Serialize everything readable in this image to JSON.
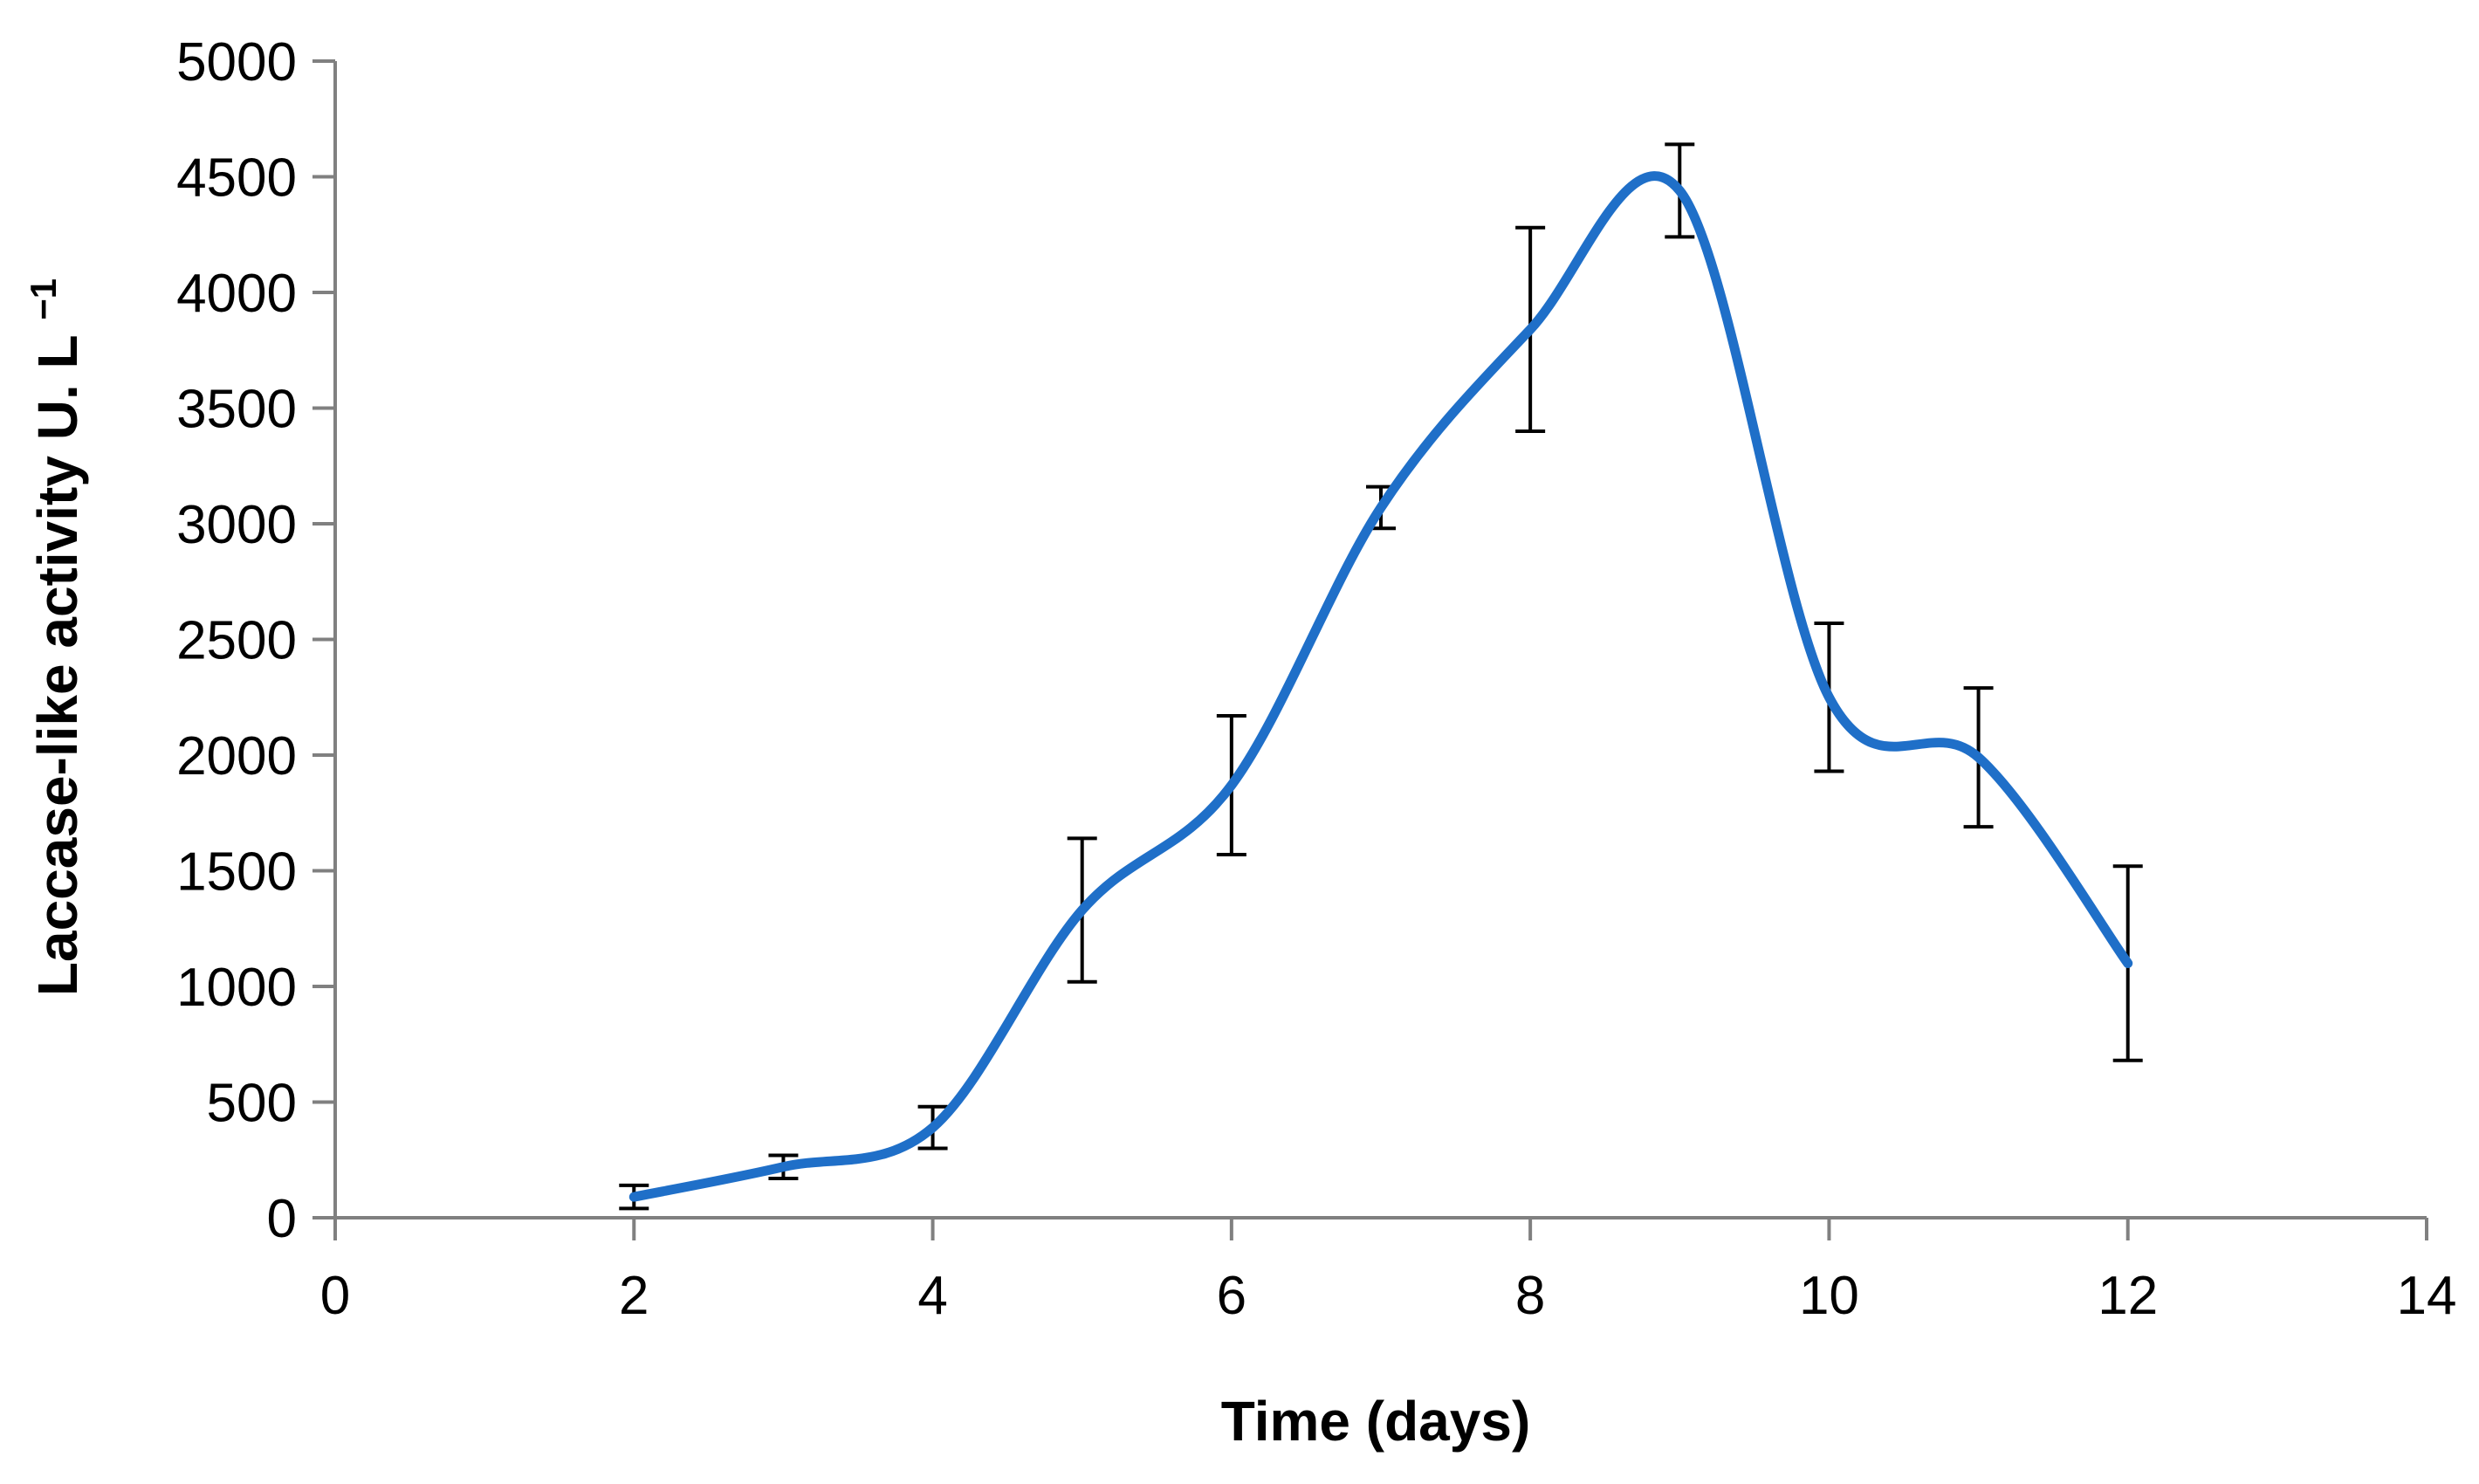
{
  "chart_data": {
    "type": "line",
    "title": "",
    "xlabel": "Time (days)",
    "ylabel": "Laccase-like activity U. L",
    "ylabel_superscript": "−1",
    "xlim": [
      0,
      14
    ],
    "ylim": [
      0,
      5000
    ],
    "x_ticks": [
      0,
      2,
      4,
      6,
      8,
      10,
      12,
      14
    ],
    "y_ticks": [
      0,
      500,
      1000,
      1500,
      2000,
      2500,
      3000,
      3500,
      4000,
      4500,
      5000
    ],
    "x_tick_labels": [
      "0",
      "2",
      "4",
      "6",
      "8",
      "10",
      "12",
      "14"
    ],
    "y_tick_labels": [
      "0",
      "500",
      "1000",
      "1500",
      "2000",
      "2500",
      "3000",
      "3500",
      "4000",
      "4500",
      "5000"
    ],
    "grid": false,
    "legend": "none",
    "smooth": true,
    "series": [
      {
        "color": "#1f6fc8",
        "x": [
          2,
          3,
          4,
          5,
          6,
          7,
          8,
          9,
          10,
          11,
          12
        ],
        "y": [
          90,
          220,
          390,
          1330,
          1870,
          3070,
          3840,
          4440,
          2250,
          1990,
          1100
        ],
        "error": [
          50,
          50,
          90,
          310,
          300,
          90,
          440,
          200,
          320,
          300,
          420
        ]
      }
    ],
    "colors": {
      "line": "#1f6fc8",
      "axis": "#808080",
      "error_bar": "#000000"
    }
  }
}
